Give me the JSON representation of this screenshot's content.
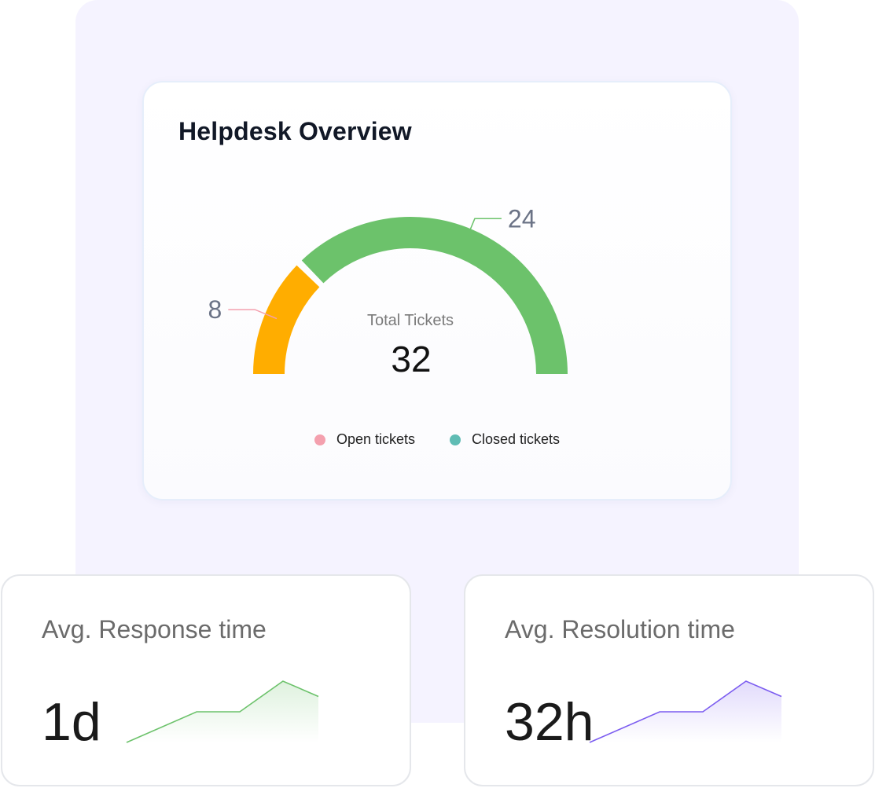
{
  "overview": {
    "title": "Helpdesk Overview",
    "center_label": "Total Tickets",
    "center_value": "32"
  },
  "chart_data": {
    "type": "gauge",
    "title": "Helpdesk Overview",
    "total_label": "Total Tickets",
    "total": 32,
    "segments": [
      {
        "name": "Open tickets",
        "value": 8,
        "label": "8",
        "color": "#ffad00",
        "leader_color": "#f4a0ae"
      },
      {
        "name": "Closed tickets",
        "value": 24,
        "label": "24",
        "color": "#6cc26b",
        "leader_color": "#6cc26b"
      }
    ],
    "legend": [
      {
        "label": "Open tickets",
        "color": "#f4a0ae"
      },
      {
        "label": "Closed tickets",
        "color": "#5fbcb4"
      }
    ]
  },
  "metrics": {
    "response": {
      "title": "Avg. Response time",
      "value": "1d",
      "trend": [
        0,
        2,
        2,
        4,
        3
      ],
      "color": "#6cc26b"
    },
    "resolution": {
      "title": "Avg. Resolution time",
      "value": "32h",
      "trend": [
        0,
        2,
        2,
        4,
        3
      ],
      "color": "#7b5cf0"
    }
  }
}
